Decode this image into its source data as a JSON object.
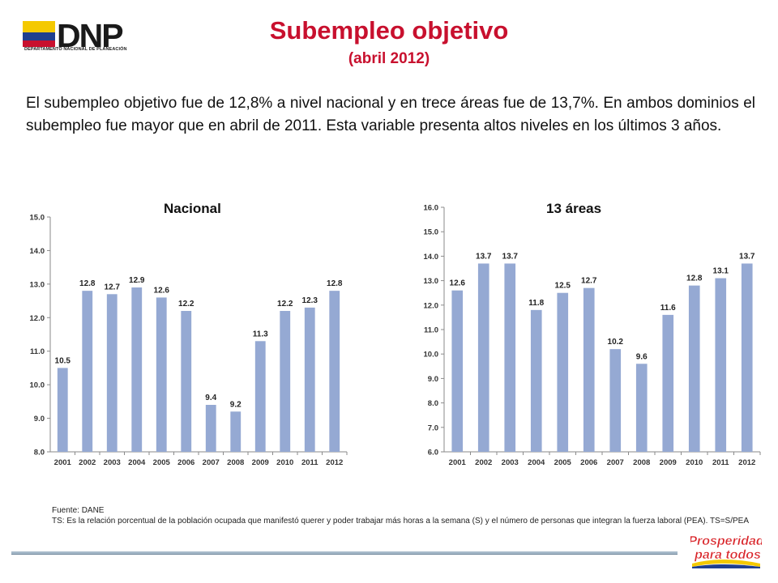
{
  "brand": {
    "name": "DNP",
    "subtext": "DEPARTAMENTO NACIONAL DE PLANEACIÓN",
    "flag_colors": [
      "#f4c900",
      "#1f3f8f",
      "#c8102e"
    ],
    "slogan_line1": "Prosperidad",
    "slogan_line2": "para todos",
    "slogan_color": "#d9252a"
  },
  "header": {
    "title": "Subempleo objetivo",
    "subtitle": "(abril 2012)",
    "color": "#c8102e"
  },
  "summary": "El subempleo objetivo fue de 12,8% a nivel nacional y en trece áreas fue de 13,7%. En ambos dominios el subempleo fue mayor que en abril de 2011. Esta variable presenta altos niveles en los últimos 3 años.",
  "chart_data": [
    {
      "type": "bar",
      "title": "Nacional",
      "categories": [
        "2001",
        "2002",
        "2003",
        "2004",
        "2005",
        "2006",
        "2007",
        "2008",
        "2009",
        "2010",
        "2011",
        "2012"
      ],
      "values": [
        10.5,
        12.8,
        12.7,
        12.9,
        12.6,
        12.2,
        9.4,
        9.2,
        11.3,
        12.2,
        12.3,
        12.8
      ],
      "value_labels": [
        "10.5",
        "12.8",
        "12.7",
        "12.9",
        "12.6",
        "12.2",
        "9.4",
        "9.2",
        "11.3",
        "12.2",
        "12.3",
        "12.8"
      ],
      "yticks": [
        "8.0",
        "9.0",
        "10.0",
        "11.0",
        "12.0",
        "13.0",
        "14.0",
        "15.0"
      ],
      "ylim": [
        8,
        15
      ],
      "bar_color": "#95a9d3",
      "grid": false,
      "legend": "none"
    },
    {
      "type": "bar",
      "title": "13 áreas",
      "categories": [
        "2001",
        "2002",
        "2003",
        "2004",
        "2005",
        "2006",
        "2007",
        "2008",
        "2009",
        "2010",
        "2011",
        "2012"
      ],
      "values": [
        12.6,
        13.7,
        13.7,
        11.8,
        12.5,
        12.7,
        10.2,
        9.6,
        11.6,
        12.8,
        13.1,
        13.7
      ],
      "value_labels": [
        "12.6",
        "13.7",
        "13.7",
        "11.8",
        "12.5",
        "12.7",
        "10.2",
        "9.6",
        "11.6",
        "12.8",
        "13.1",
        "13.7"
      ],
      "yticks": [
        "6.0",
        "7.0",
        "8.0",
        "9.0",
        "10.0",
        "11.0",
        "12.0",
        "13.0",
        "14.0",
        "15.0",
        "16.0"
      ],
      "ylim": [
        6,
        16
      ],
      "bar_color": "#95a9d3",
      "grid": false,
      "legend": "none"
    }
  ],
  "footer": {
    "source": "Fuente:  DANE",
    "note": "TS:  Es la relación porcentual de la población ocupada que manifestó querer y poder trabajar  más horas a la semana (S) y el número de personas que integran la fuerza laboral (PEA). TS=S/PEA"
  }
}
